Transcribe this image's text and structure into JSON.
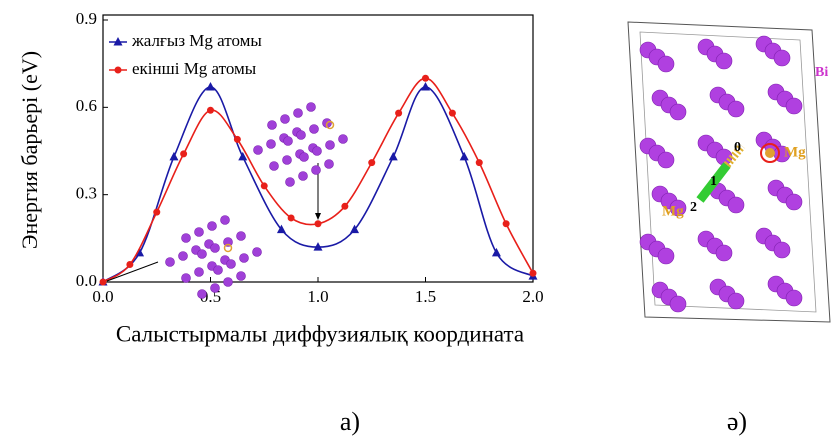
{
  "chart_data": {
    "type": "line",
    "x_label": "Салыстырмалы диффузиялық координата",
    "y_label": "Энергия барьері (eV)",
    "xlim": [
      0,
      2
    ],
    "ylim": [
      0,
      0.9
    ],
    "xticks": [
      {
        "value": 0,
        "label": "0.0"
      },
      {
        "value": 0.5,
        "label": "0.5"
      },
      {
        "value": 1,
        "label": "1.0"
      },
      {
        "value": 1.5,
        "label": "1.5"
      },
      {
        "value": 2,
        "label": "2.0"
      }
    ],
    "yticks": [
      {
        "value": 0,
        "label": "0.0"
      },
      {
        "value": 0.3,
        "label": "0.3"
      },
      {
        "value": 0.6,
        "label": "0.6"
      },
      {
        "value": 0.9,
        "label": "0.9"
      }
    ],
    "series": [
      {
        "name": "жалғыз Mg атомы",
        "color": "#1a1aa6",
        "marker": "triangle",
        "x": [
          0,
          0.17,
          0.33,
          0.5,
          0.65,
          0.83,
          1.0,
          1.17,
          1.35,
          1.5,
          1.68,
          1.83,
          2.0
        ],
        "values": [
          0,
          0.1,
          0.43,
          0.67,
          0.43,
          0.18,
          0.12,
          0.18,
          0.43,
          0.67,
          0.43,
          0.1,
          0.02
        ]
      },
      {
        "name": "екінші Mg атомы",
        "color": "#e8201a",
        "marker": "circle",
        "x": [
          0,
          0.125,
          0.25,
          0.375,
          0.5,
          0.625,
          0.75,
          0.875,
          1.0,
          1.125,
          1.25,
          1.375,
          1.5,
          1.625,
          1.75,
          1.875,
          2.0
        ],
        "values": [
          0,
          0.06,
          0.24,
          0.44,
          0.59,
          0.49,
          0.33,
          0.22,
          0.2,
          0.26,
          0.41,
          0.58,
          0.7,
          0.58,
          0.41,
          0.2,
          0.03
        ]
      }
    ]
  },
  "structure_labels": {
    "bi": "Bi",
    "mg_site": "Mg",
    "step0": "0",
    "step1": "1",
    "mg_end": "Mg",
    "step2": "2"
  },
  "captions": [
    "а)",
    "ә)"
  ]
}
